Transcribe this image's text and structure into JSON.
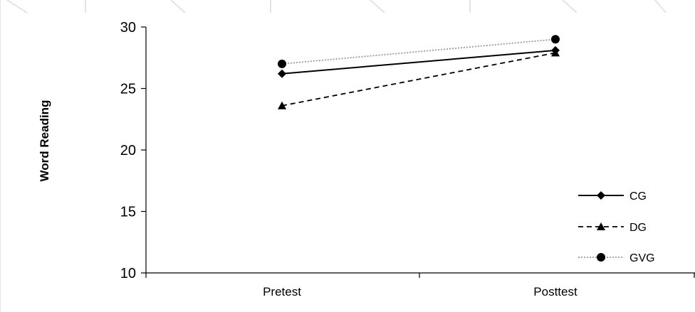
{
  "chart_data": {
    "type": "line",
    "title": "",
    "xlabel": "",
    "ylabel": "Word Reading",
    "categories": [
      "Pretest",
      "Posttest"
    ],
    "ylim": [
      10,
      30
    ],
    "yticks": [
      10,
      15,
      20,
      25,
      30
    ],
    "grid": false,
    "legend_position": "bottom-right",
    "series": [
      {
        "name": "CG",
        "values": [
          26.2,
          28.1
        ],
        "marker": "diamond",
        "line_style": "solid",
        "color": "#000000"
      },
      {
        "name": "DG",
        "values": [
          23.6,
          27.9
        ],
        "marker": "triangle",
        "line_style": "dashed",
        "color": "#000000"
      },
      {
        "name": "GVG",
        "values": [
          27.0,
          29.0
        ],
        "marker": "circle",
        "line_style": "dotted",
        "color": "#9a9a9a"
      }
    ]
  }
}
